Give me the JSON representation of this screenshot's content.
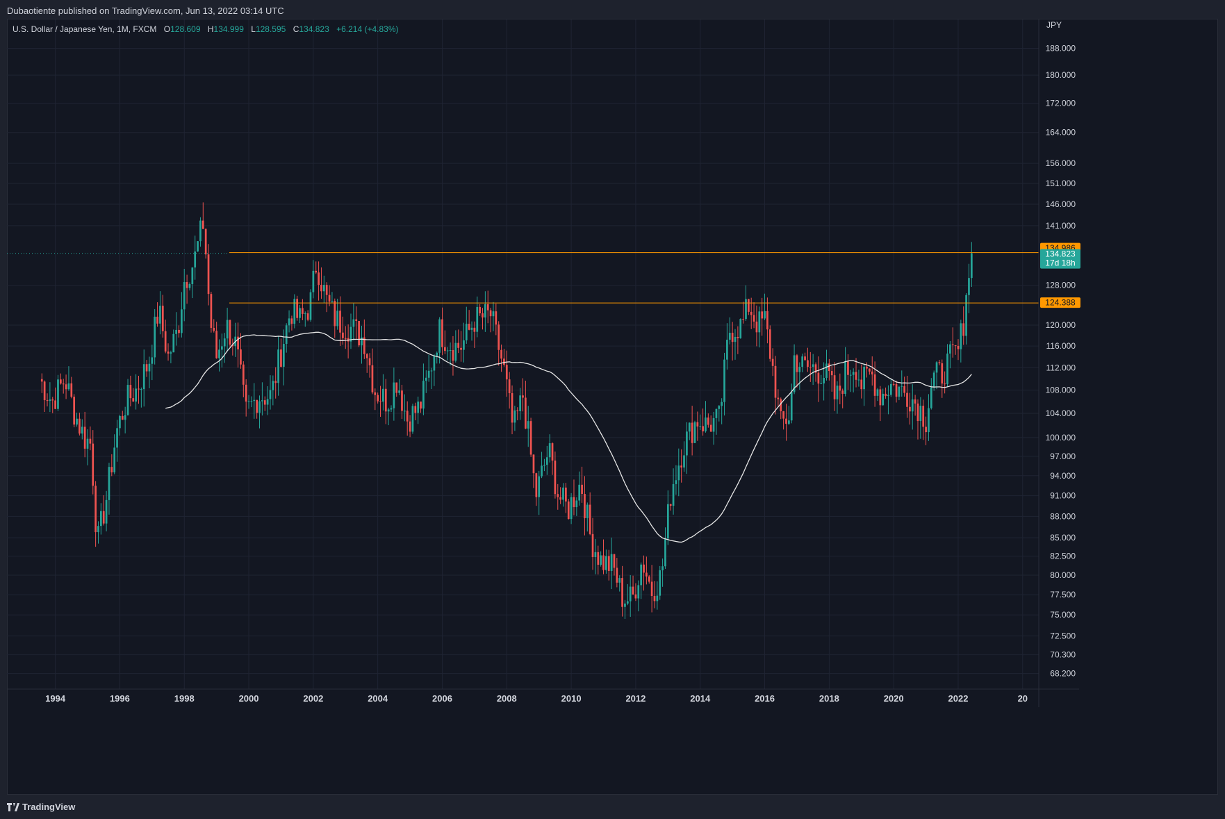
{
  "header": {
    "published": "Dubaotiente published on TradingView.com, Jun 13, 2022 03:14 UTC"
  },
  "legend": {
    "symbol": "U.S. Dollar / Japanese Yen, 1M, FXCM",
    "o_label": "O",
    "o_value": "128.609",
    "h_label": "H",
    "h_value": "134.999",
    "l_label": "L",
    "l_value": "128.595",
    "c_label": "C",
    "c_value": "134.823",
    "change": "+6.214 (+4.83%)"
  },
  "footer": {
    "brand": "TradingView"
  },
  "colors": {
    "background": "#131722",
    "grid": "#1f2433",
    "up": "#26a69a",
    "down": "#ef5350",
    "ma": "#e6e6e6",
    "level": "#ff9800",
    "text": "#d1d4dc"
  },
  "chart_data": {
    "type": "candlestick",
    "symbol": "USDJPY",
    "interval": "1M",
    "y_axis_label": "JPY",
    "y_scale": "log",
    "y_range": [
      66.5,
      197.0
    ],
    "x_range": [
      1992.5,
      2024.5
    ],
    "y_ticks": [
      "188.000",
      "180.000",
      "172.000",
      "164.000",
      "156.000",
      "151.000",
      "146.000",
      "141.000",
      "128.000",
      "120.000",
      "116.000",
      "112.000",
      "108.000",
      "104.000",
      "100.000",
      "97.000",
      "94.000",
      "91.000",
      "88.000",
      "85.000",
      "82.500",
      "80.000",
      "77.500",
      "75.000",
      "72.500",
      "70.300",
      "68.200"
    ],
    "x_ticks": [
      "1994",
      "1996",
      "1998",
      "2000",
      "2002",
      "2004",
      "2006",
      "2008",
      "2010",
      "2012",
      "2014",
      "2016",
      "2018",
      "2020",
      "2022",
      "20"
    ],
    "horizontal_levels": [
      {
        "value": 134.986,
        "label": "134.986"
      },
      {
        "value": 124.388,
        "label": "124.388"
      }
    ],
    "last_price": {
      "value": 134.823,
      "label": "134.823",
      "countdown": "17d 18h"
    },
    "anchors": [
      [
        1993.5,
        110
      ],
      [
        1993.9,
        106
      ],
      [
        1994.3,
        110
      ],
      [
        1994.6,
        104
      ],
      [
        1994.9,
        100
      ],
      [
        1995.1,
        99
      ],
      [
        1995.3,
        84
      ],
      [
        1995.6,
        91
      ],
      [
        1995.9,
        101
      ],
      [
        1996.2,
        106
      ],
      [
        1996.5,
        108
      ],
      [
        1996.9,
        113
      ],
      [
        1997.2,
        123
      ],
      [
        1997.5,
        114
      ],
      [
        1997.8,
        119
      ],
      [
        1998.0,
        129
      ],
      [
        1998.3,
        133
      ],
      [
        1998.6,
        142
      ],
      [
        1998.8,
        121
      ],
      [
        1999.0,
        114
      ],
      [
        1999.3,
        120
      ],
      [
        1999.6,
        116
      ],
      [
        1999.9,
        104
      ],
      [
        2000.3,
        107
      ],
      [
        2000.7,
        107
      ],
      [
        2001.0,
        115
      ],
      [
        2001.3,
        123
      ],
      [
        2001.6,
        121
      ],
      [
        2001.9,
        124
      ],
      [
        2002.1,
        133
      ],
      [
        2002.4,
        125
      ],
      [
        2002.7,
        121
      ],
      [
        2003.0,
        120
      ],
      [
        2003.3,
        119
      ],
      [
        2003.6,
        117
      ],
      [
        2003.9,
        108
      ],
      [
        2004.3,
        106
      ],
      [
        2004.6,
        110
      ],
      [
        2004.9,
        103
      ],
      [
        2005.3,
        105
      ],
      [
        2005.6,
        111
      ],
      [
        2005.9,
        119
      ],
      [
        2006.3,
        116
      ],
      [
        2006.6,
        116
      ],
      [
        2007.0,
        121
      ],
      [
        2007.5,
        122
      ],
      [
        2007.9,
        112
      ],
      [
        2008.2,
        101
      ],
      [
        2008.5,
        107
      ],
      [
        2008.9,
        91
      ],
      [
        2009.3,
        98
      ],
      [
        2009.6,
        91
      ],
      [
        2009.9,
        89
      ],
      [
        2010.3,
        93
      ],
      [
        2010.6,
        85
      ],
      [
        2010.9,
        82
      ],
      [
        2011.3,
        81
      ],
      [
        2011.6,
        77
      ],
      [
        2011.9,
        77
      ],
      [
        2012.2,
        82
      ],
      [
        2012.5,
        78
      ],
      [
        2012.8,
        80
      ],
      [
        2013.1,
        92
      ],
      [
        2013.5,
        99
      ],
      [
        2013.9,
        103
      ],
      [
        2014.2,
        102
      ],
      [
        2014.6,
        103
      ],
      [
        2014.9,
        119
      ],
      [
        2015.3,
        120
      ],
      [
        2015.5,
        124
      ],
      [
        2015.8,
        120
      ],
      [
        2016.0,
        121
      ],
      [
        2016.3,
        110
      ],
      [
        2016.5,
        102
      ],
      [
        2016.8,
        104
      ],
      [
        2016.9,
        114
      ],
      [
        2017.2,
        112
      ],
      [
        2017.5,
        112
      ],
      [
        2017.8,
        111
      ],
      [
        2018.0,
        110
      ],
      [
        2018.2,
        106
      ],
      [
        2018.5,
        111
      ],
      [
        2018.8,
        113
      ],
      [
        2019.0,
        109
      ],
      [
        2019.3,
        111
      ],
      [
        2019.6,
        107
      ],
      [
        2019.9,
        109
      ],
      [
        2020.2,
        108
      ],
      [
        2020.5,
        107
      ],
      [
        2020.8,
        105
      ],
      [
        2021.0,
        103
      ],
      [
        2021.2,
        110
      ],
      [
        2021.5,
        111
      ],
      [
        2021.8,
        114
      ],
      [
        2022.0,
        115
      ],
      [
        2022.2,
        122
      ],
      [
        2022.3,
        130
      ],
      [
        2022.4,
        128.6
      ],
      [
        2022.45,
        134.823
      ]
    ]
  }
}
